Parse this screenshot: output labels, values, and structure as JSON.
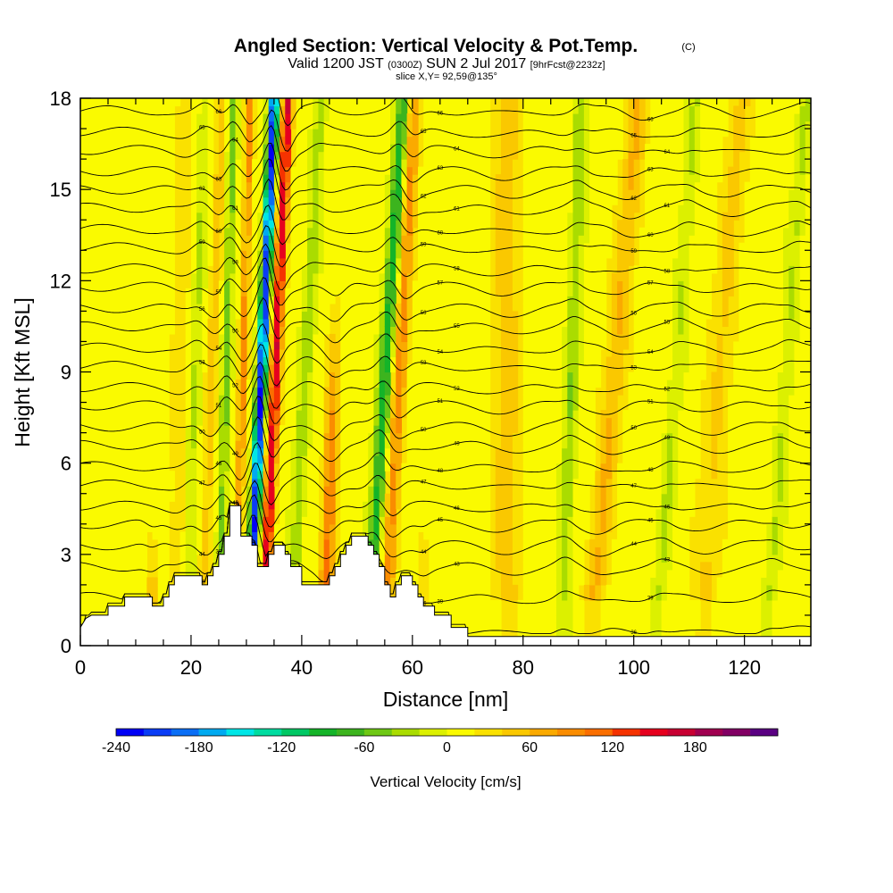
{
  "chart_data": {
    "type": "heatmap",
    "title": "Angled Section: Vertical Velocity & Pot.Temp.",
    "title_unit": "(C)",
    "subtitle": {
      "prefix": "Valid 1200 JST",
      "utc": "(0300Z)",
      "date": "SUN 2 Jul 2017",
      "forecast": "[9hrFcst@2232z]"
    },
    "slice": "slice X,Y= 92,59@135°",
    "xlabel": "Distance [nm]",
    "ylabel": "Height [Kft MSL]",
    "xlim": [
      0,
      132
    ],
    "ylim": [
      0,
      18
    ],
    "x_ticks": [
      0,
      20,
      40,
      60,
      80,
      100,
      120
    ],
    "y_ticks": [
      0,
      3,
      6,
      9,
      12,
      15,
      18
    ],
    "colorbar": {
      "label": "Vertical Velocity [cm/s]",
      "levels": [
        -240,
        -220,
        -200,
        -180,
        -160,
        -140,
        -120,
        -100,
        -80,
        -60,
        -40,
        -20,
        0,
        20,
        40,
        60,
        80,
        100,
        120,
        140,
        160,
        180,
        200,
        220
      ],
      "tick_values": [
        -240,
        -180,
        -120,
        -60,
        0,
        60,
        120,
        180
      ],
      "colors": [
        "#0000f5",
        "#0a3cf5",
        "#0a6ef5",
        "#00aaf0",
        "#00e6e6",
        "#00dca0",
        "#00c864",
        "#14b428",
        "#3cb41e",
        "#6ec814",
        "#aadc00",
        "#dcf000",
        "#fafa00",
        "#fae100",
        "#fac800",
        "#faaa00",
        "#fa8c00",
        "#fa6e00",
        "#f53200",
        "#e6001e",
        "#c80032",
        "#a00050",
        "#820064",
        "#5a0082"
      ]
    },
    "terrain_profile": [
      [
        0,
        0.6
      ],
      [
        1,
        0.9
      ],
      [
        2,
        1.0
      ],
      [
        5,
        1.0
      ],
      [
        5,
        1.3
      ],
      [
        8,
        1.3
      ],
      [
        8,
        1.6
      ],
      [
        13,
        1.6
      ],
      [
        13,
        1.3
      ],
      [
        15,
        1.3
      ],
      [
        15,
        1.6
      ],
      [
        16,
        1.6
      ],
      [
        16,
        2.0
      ],
      [
        17,
        2.0
      ],
      [
        17,
        2.3
      ],
      [
        22,
        2.3
      ],
      [
        22,
        2.0
      ],
      [
        23,
        2.0
      ],
      [
        23,
        2.3
      ],
      [
        24,
        2.3
      ],
      [
        24,
        2.6
      ],
      [
        25,
        2.6
      ],
      [
        25,
        3.0
      ],
      [
        26,
        3.0
      ],
      [
        26,
        3.6
      ],
      [
        27,
        3.6
      ],
      [
        27,
        4.6
      ],
      [
        29,
        4.6
      ],
      [
        29,
        3.6
      ],
      [
        31,
        3.6
      ],
      [
        31,
        3.3
      ],
      [
        32,
        3.3
      ],
      [
        32,
        2.6
      ],
      [
        33,
        2.6
      ],
      [
        33,
        2.6
      ],
      [
        34,
        2.6
      ],
      [
        34,
        3.0
      ],
      [
        35,
        3.0
      ],
      [
        35,
        3.3
      ],
      [
        37,
        3.3
      ],
      [
        37,
        3.0
      ],
      [
        38,
        3.0
      ],
      [
        38,
        2.6
      ],
      [
        40,
        2.6
      ],
      [
        40,
        2.0
      ],
      [
        45,
        2.0
      ],
      [
        45,
        2.3
      ],
      [
        46,
        2.3
      ],
      [
        46,
        2.6
      ],
      [
        47,
        2.6
      ],
      [
        47,
        3.0
      ],
      [
        48,
        3.0
      ],
      [
        48,
        3.3
      ],
      [
        49,
        3.3
      ],
      [
        49,
        3.6
      ],
      [
        52,
        3.6
      ],
      [
        52,
        3.3
      ],
      [
        53,
        3.3
      ],
      [
        53,
        3.0
      ],
      [
        54,
        3.0
      ],
      [
        54,
        2.6
      ],
      [
        55,
        2.6
      ],
      [
        55,
        2.0
      ],
      [
        56,
        2.0
      ],
      [
        56,
        1.6
      ],
      [
        57,
        1.6
      ],
      [
        57,
        2.0
      ],
      [
        58,
        2.0
      ],
      [
        58,
        2.3
      ],
      [
        60,
        2.3
      ],
      [
        60,
        2.0
      ],
      [
        61,
        2.0
      ],
      [
        61,
        1.6
      ],
      [
        62,
        1.6
      ],
      [
        62,
        1.3
      ],
      [
        64,
        1.3
      ],
      [
        64,
        1.0
      ],
      [
        67,
        1.0
      ],
      [
        67,
        0.6
      ],
      [
        70,
        0.6
      ],
      [
        70,
        0.3
      ],
      [
        132,
        0.3
      ]
    ],
    "updrafts": [
      {
        "x": 13,
        "top": 4,
        "amp": 50,
        "tilt": 0,
        "width": 1.0
      },
      {
        "x": 17,
        "top": 18,
        "amp": 25,
        "tilt": 0.1,
        "width": 1.5
      },
      {
        "x": 22,
        "top": 18,
        "amp": 45,
        "tilt": 0.2,
        "width": 1.0
      },
      {
        "x": 28,
        "top": 18,
        "amp": 80,
        "tilt": 0.15,
        "width": 0.8
      },
      {
        "x": 33,
        "top": 18,
        "amp": 150,
        "tilt": 0.25,
        "width": 1.0
      },
      {
        "x": 44,
        "top": 12,
        "amp": 100,
        "tilt": 0.2,
        "width": 1.3
      },
      {
        "x": 55,
        "top": 18,
        "amp": 80,
        "tilt": 0.3,
        "width": 1.3
      },
      {
        "x": 62,
        "top": 4,
        "amp": 40,
        "tilt": 0,
        "width": 1.0
      },
      {
        "x": 77,
        "top": 18,
        "amp": 40,
        "tilt": 0,
        "width": 3.0
      },
      {
        "x": 92,
        "top": 18,
        "amp": 55,
        "tilt": 0.5,
        "width": 2.0
      },
      {
        "x": 112,
        "top": 18,
        "amp": 35,
        "tilt": 0.4,
        "width": 2.5
      }
    ],
    "downdrafts": [
      {
        "x": 19,
        "top": 18,
        "amp": -30,
        "tilt": 0.2,
        "width": 1.0
      },
      {
        "x": 25,
        "top": 18,
        "amp": -60,
        "tilt": 0.15,
        "width": 0.8
      },
      {
        "x": 30.5,
        "top": 18,
        "amp": -230,
        "tilt": 0.25,
        "width": 0.9
      },
      {
        "x": 38,
        "top": 18,
        "amp": -40,
        "tilt": 0.3,
        "width": 1.2
      },
      {
        "x": 52,
        "top": 18,
        "amp": -100,
        "tilt": 0.35,
        "width": 1.2
      },
      {
        "x": 87,
        "top": 18,
        "amp": -45,
        "tilt": 0.2,
        "width": 1.2
      },
      {
        "x": 104,
        "top": 18,
        "amp": -30,
        "tilt": 0.4,
        "width": 1.2
      },
      {
        "x": 124,
        "top": 18,
        "amp": -30,
        "tilt": 0.4,
        "width": 1.2
      }
    ],
    "theta_contours": {
      "interval_c": 1,
      "base_heights_kft": [
        0.5,
        1.6,
        2.6,
        3.3,
        4.0,
        4.6,
        5.3,
        5.9,
        6.6,
        7.2,
        7.9,
        8.5,
        9.2,
        9.8,
        10.5,
        11.1,
        11.8,
        12.4,
        13.1,
        13.7,
        14.4,
        15.0,
        15.6,
        16.3,
        16.9,
        17.6
      ],
      "labels": [
        "36",
        "39",
        "43",
        "44",
        "45",
        "46",
        "47",
        "48",
        "49",
        "50",
        "51",
        "52",
        "53",
        "54",
        "55",
        "56",
        "57",
        "58",
        "59",
        "60",
        "61",
        "62",
        "63",
        "64",
        "65",
        "66"
      ]
    }
  }
}
